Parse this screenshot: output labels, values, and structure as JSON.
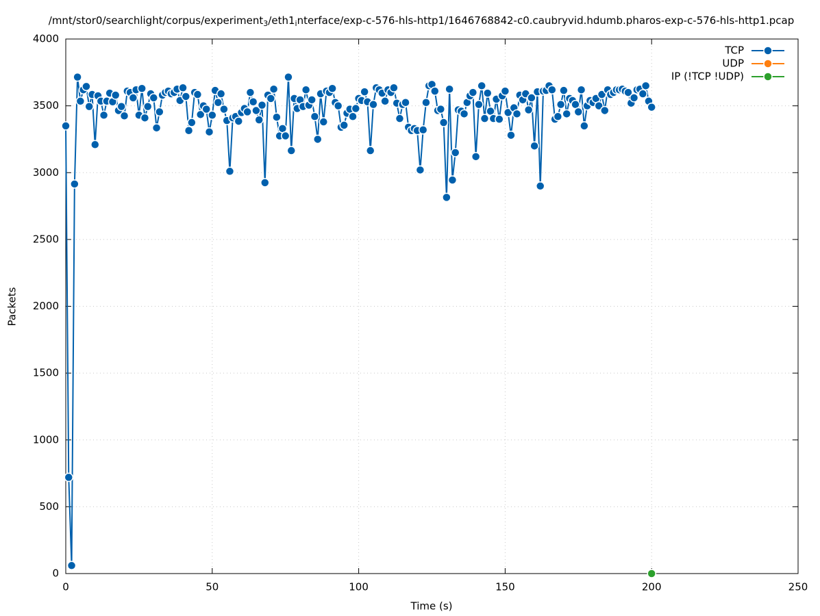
{
  "chart_data": {
    "type": "line",
    "title": [
      "/mnt/stor0/searchlight/corpus/experiment",
      "3",
      "/eth1",
      "i",
      "nterface/exp-c-576-hls-http1/1646768842-c0.caubryvid.hdumb.pharos-exp-c-576-hls-http1.pcap"
    ],
    "x_label": "Time (s)",
    "y_label": "Packets",
    "xlim": [
      0,
      250
    ],
    "xticks": [
      0,
      50,
      100,
      150,
      200,
      250
    ],
    "ylim": [
      0,
      4000
    ],
    "yticks": [
      0,
      500,
      1000,
      1500,
      2000,
      2500,
      3000,
      3500,
      4000
    ],
    "grid": true,
    "legend": "top-right",
    "series": [
      {
        "name": "TCP",
        "color": "#0060ad",
        "x": [
          0,
          1,
          2,
          3,
          4,
          5,
          6,
          7,
          8,
          9,
          10,
          11,
          12,
          13,
          14,
          15,
          16,
          17,
          18,
          19,
          20,
          21,
          22,
          23,
          24,
          25,
          26,
          27,
          28,
          29,
          30,
          31,
          32,
          33,
          34,
          35,
          36,
          37,
          38,
          39,
          40,
          41,
          42,
          43,
          44,
          45,
          46,
          47,
          48,
          49,
          50,
          51,
          52,
          53,
          54,
          55,
          56,
          57,
          58,
          59,
          60,
          61,
          62,
          63,
          64,
          65,
          66,
          67,
          68,
          69,
          70,
          71,
          72,
          73,
          74,
          75,
          76,
          77,
          78,
          79,
          80,
          81,
          82,
          83,
          84,
          85,
          86,
          87,
          88,
          89,
          90,
          91,
          92,
          93,
          94,
          95,
          96,
          97,
          98,
          99,
          100,
          101,
          102,
          103,
          104,
          105,
          106,
          107,
          108,
          109,
          110,
          111,
          112,
          113,
          114,
          115,
          116,
          117,
          118,
          119,
          120,
          121,
          122,
          123,
          124,
          125,
          126,
          127,
          128,
          129,
          130,
          131,
          132,
          133,
          134,
          135,
          136,
          137,
          138,
          139,
          140,
          141,
          142,
          143,
          144,
          145,
          146,
          147,
          148,
          149,
          150,
          151,
          152,
          153,
          154,
          155,
          156,
          157,
          158,
          159,
          160,
          161,
          162,
          163,
          164,
          165,
          166,
          167,
          168,
          169,
          170,
          171,
          172,
          173,
          174,
          175,
          176,
          177,
          178,
          179,
          180,
          181,
          182,
          183,
          184,
          185,
          186,
          187,
          188,
          189,
          190,
          191,
          192,
          193,
          194,
          195,
          196,
          197,
          198,
          199,
          200
        ],
        "values": [
          3350,
          720,
          60,
          2915,
          3715,
          3535,
          3620,
          3645,
          3495,
          3585,
          3210,
          3575,
          3535,
          3430,
          3535,
          3595,
          3530,
          3580,
          3465,
          3495,
          3425,
          3610,
          3600,
          3560,
          3620,
          3430,
          3630,
          3410,
          3495,
          3590,
          3560,
          3335,
          3455,
          3580,
          3600,
          3610,
          3590,
          3600,
          3625,
          3540,
          3635,
          3570,
          3315,
          3375,
          3600,
          3585,
          3435,
          3500,
          3475,
          3305,
          3430,
          3615,
          3525,
          3590,
          3475,
          3390,
          3010,
          3410,
          3420,
          3385,
          3450,
          3480,
          3455,
          3600,
          3530,
          3465,
          3395,
          3505,
          2925,
          3580,
          3555,
          3625,
          3415,
          3275,
          3330,
          3275,
          3715,
          3165,
          3555,
          3480,
          3545,
          3495,
          3620,
          3505,
          3545,
          3420,
          3250,
          3590,
          3380,
          3610,
          3600,
          3630,
          3525,
          3500,
          3340,
          3355,
          3445,
          3475,
          3420,
          3480,
          3555,
          3540,
          3605,
          3530,
          3165,
          3510,
          3635,
          3620,
          3595,
          3535,
          3620,
          3600,
          3635,
          3520,
          3405,
          3510,
          3525,
          3340,
          3315,
          3330,
          3315,
          3020,
          3320,
          3525,
          3650,
          3660,
          3610,
          3465,
          3475,
          3375,
          2815,
          3625,
          2945,
          3150,
          3470,
          3460,
          3440,
          3525,
          3575,
          3600,
          3120,
          3510,
          3650,
          3405,
          3595,
          3460,
          3405,
          3550,
          3400,
          3575,
          3610,
          3450,
          3280,
          3485,
          3440,
          3580,
          3545,
          3590,
          3470,
          3560,
          3200,
          3605,
          2900,
          3610,
          3615,
          3650,
          3620,
          3400,
          3420,
          3510,
          3615,
          3440,
          3555,
          3540,
          3510,
          3455,
          3620,
          3350,
          3500,
          3540,
          3525,
          3555,
          3500,
          3585,
          3465,
          3620,
          3585,
          3600,
          3620,
          3620,
          3625,
          3610,
          3600,
          3520,
          3560,
          3620,
          3625,
          3590,
          3650,
          3535,
          3490
        ]
      },
      {
        "name": "UDP",
        "color": "#ff7f0e",
        "x": [
          200
        ],
        "values": [
          0
        ]
      },
      {
        "name": "IP (!TCP  !UDP)",
        "color": "#2ca02c",
        "x": [
          200
        ],
        "values": [
          0
        ]
      }
    ]
  }
}
